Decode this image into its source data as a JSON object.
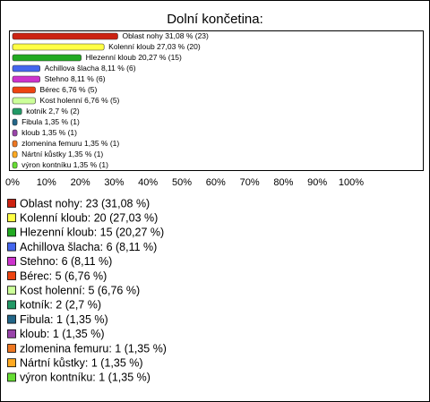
{
  "chart_data": {
    "type": "barh",
    "title": "Dolní končetina:",
    "categories": [
      "Oblast nohy",
      "Kolenní kloub",
      "Hlezenní kloub",
      "Achillova šlacha",
      "Stehno",
      "Bérec",
      "Kost holenní",
      "kotník",
      "Fibula",
      "kloub",
      "zlomenina femuru",
      "Nártní kůstky",
      "výron kontníku"
    ],
    "values": [
      31.08,
      27.03,
      20.27,
      8.11,
      8.11,
      6.76,
      6.76,
      2.7,
      1.35,
      1.35,
      1.35,
      1.35,
      1.35
    ],
    "value_labels": [
      "Oblast nohy 31,08 % (23)",
      "Kolenní kloub 27,03 % (20)",
      "Hlezenní kloub 20,27 % (15)",
      "Achillova šlacha 8,11 % (6)",
      "Stehno 8,11 % (6)",
      "Bérec 6,76 % (5)",
      "Kost holenní 6,76 % (5)",
      "kotník 2,7 % (2)",
      "Fibula 1,35 % (1)",
      "kloub 1,35 % (1)",
      "zlomenina femuru 1,35 % (1)",
      "Nártní kůstky 1,35 % (1)",
      "výron kontníku 1,35 % (1)"
    ],
    "legend_labels": [
      "Oblast nohy: 23 (31,08 %)",
      "Kolenní kloub: 20 (27,03 %)",
      "Hlezenní kloub: 15 (20,27 %)",
      "Achillova šlacha: 6 (8,11 %)",
      "Stehno: 6 (8,11 %)",
      "Bérec: 5 (6,76 %)",
      "Kost holenní: 5 (6,76 %)",
      "kotník: 2 (2,7 %)",
      "Fibula: 1 (1,35 %)",
      "kloub: 1 (1,35 %)",
      "zlomenina femuru: 1 (1,35 %)",
      "Nártní kůstky: 1 (1,35 %)",
      "výron kontníku: 1 (1,35 %)"
    ],
    "colors": [
      "#cc2211",
      "#ffff44",
      "#22aa22",
      "#4466ee",
      "#cc33cc",
      "#ee4411",
      "#ccff99",
      "#229966",
      "#226688",
      "#9944aa",
      "#ee7722",
      "#ffaa22",
      "#66dd33"
    ],
    "xlim": [
      0,
      100
    ],
    "xticks": [
      {
        "value": 0,
        "label": "0%"
      },
      {
        "value": 10,
        "label": "10%"
      },
      {
        "value": 20,
        "label": "20%"
      },
      {
        "value": 30,
        "label": "30%"
      },
      {
        "value": 40,
        "label": "40%"
      },
      {
        "value": 50,
        "label": "50%"
      },
      {
        "value": 60,
        "label": "60%"
      },
      {
        "value": 70,
        "label": "70%"
      },
      {
        "value": 80,
        "label": "80%"
      },
      {
        "value": 90,
        "label": "90%"
      },
      {
        "value": 100,
        "label": "100%"
      }
    ]
  }
}
